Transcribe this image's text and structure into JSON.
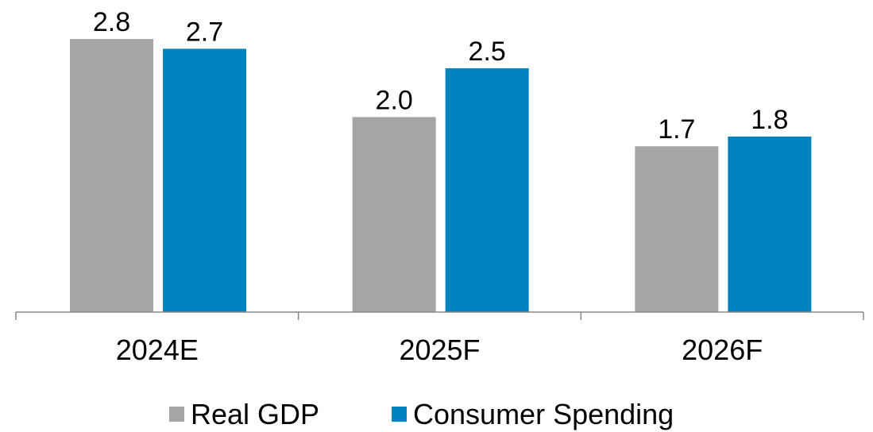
{
  "chart_data": {
    "type": "bar",
    "categories": [
      "2024E",
      "2025F",
      "2026F"
    ],
    "series": [
      {
        "name": "Real GDP",
        "color": "#a5a5a5",
        "values": [
          2.8,
          2.0,
          1.7
        ],
        "value_labels": [
          "2.8",
          "2.0",
          "1.7"
        ]
      },
      {
        "name": "Consumer Spending",
        "color": "#0083be",
        "values": [
          2.7,
          2.5,
          1.8
        ],
        "value_labels": [
          "2.7",
          "2.5",
          "1.8"
        ]
      }
    ],
    "ylim": [
      0,
      3.2
    ],
    "legend": "bottom"
  }
}
